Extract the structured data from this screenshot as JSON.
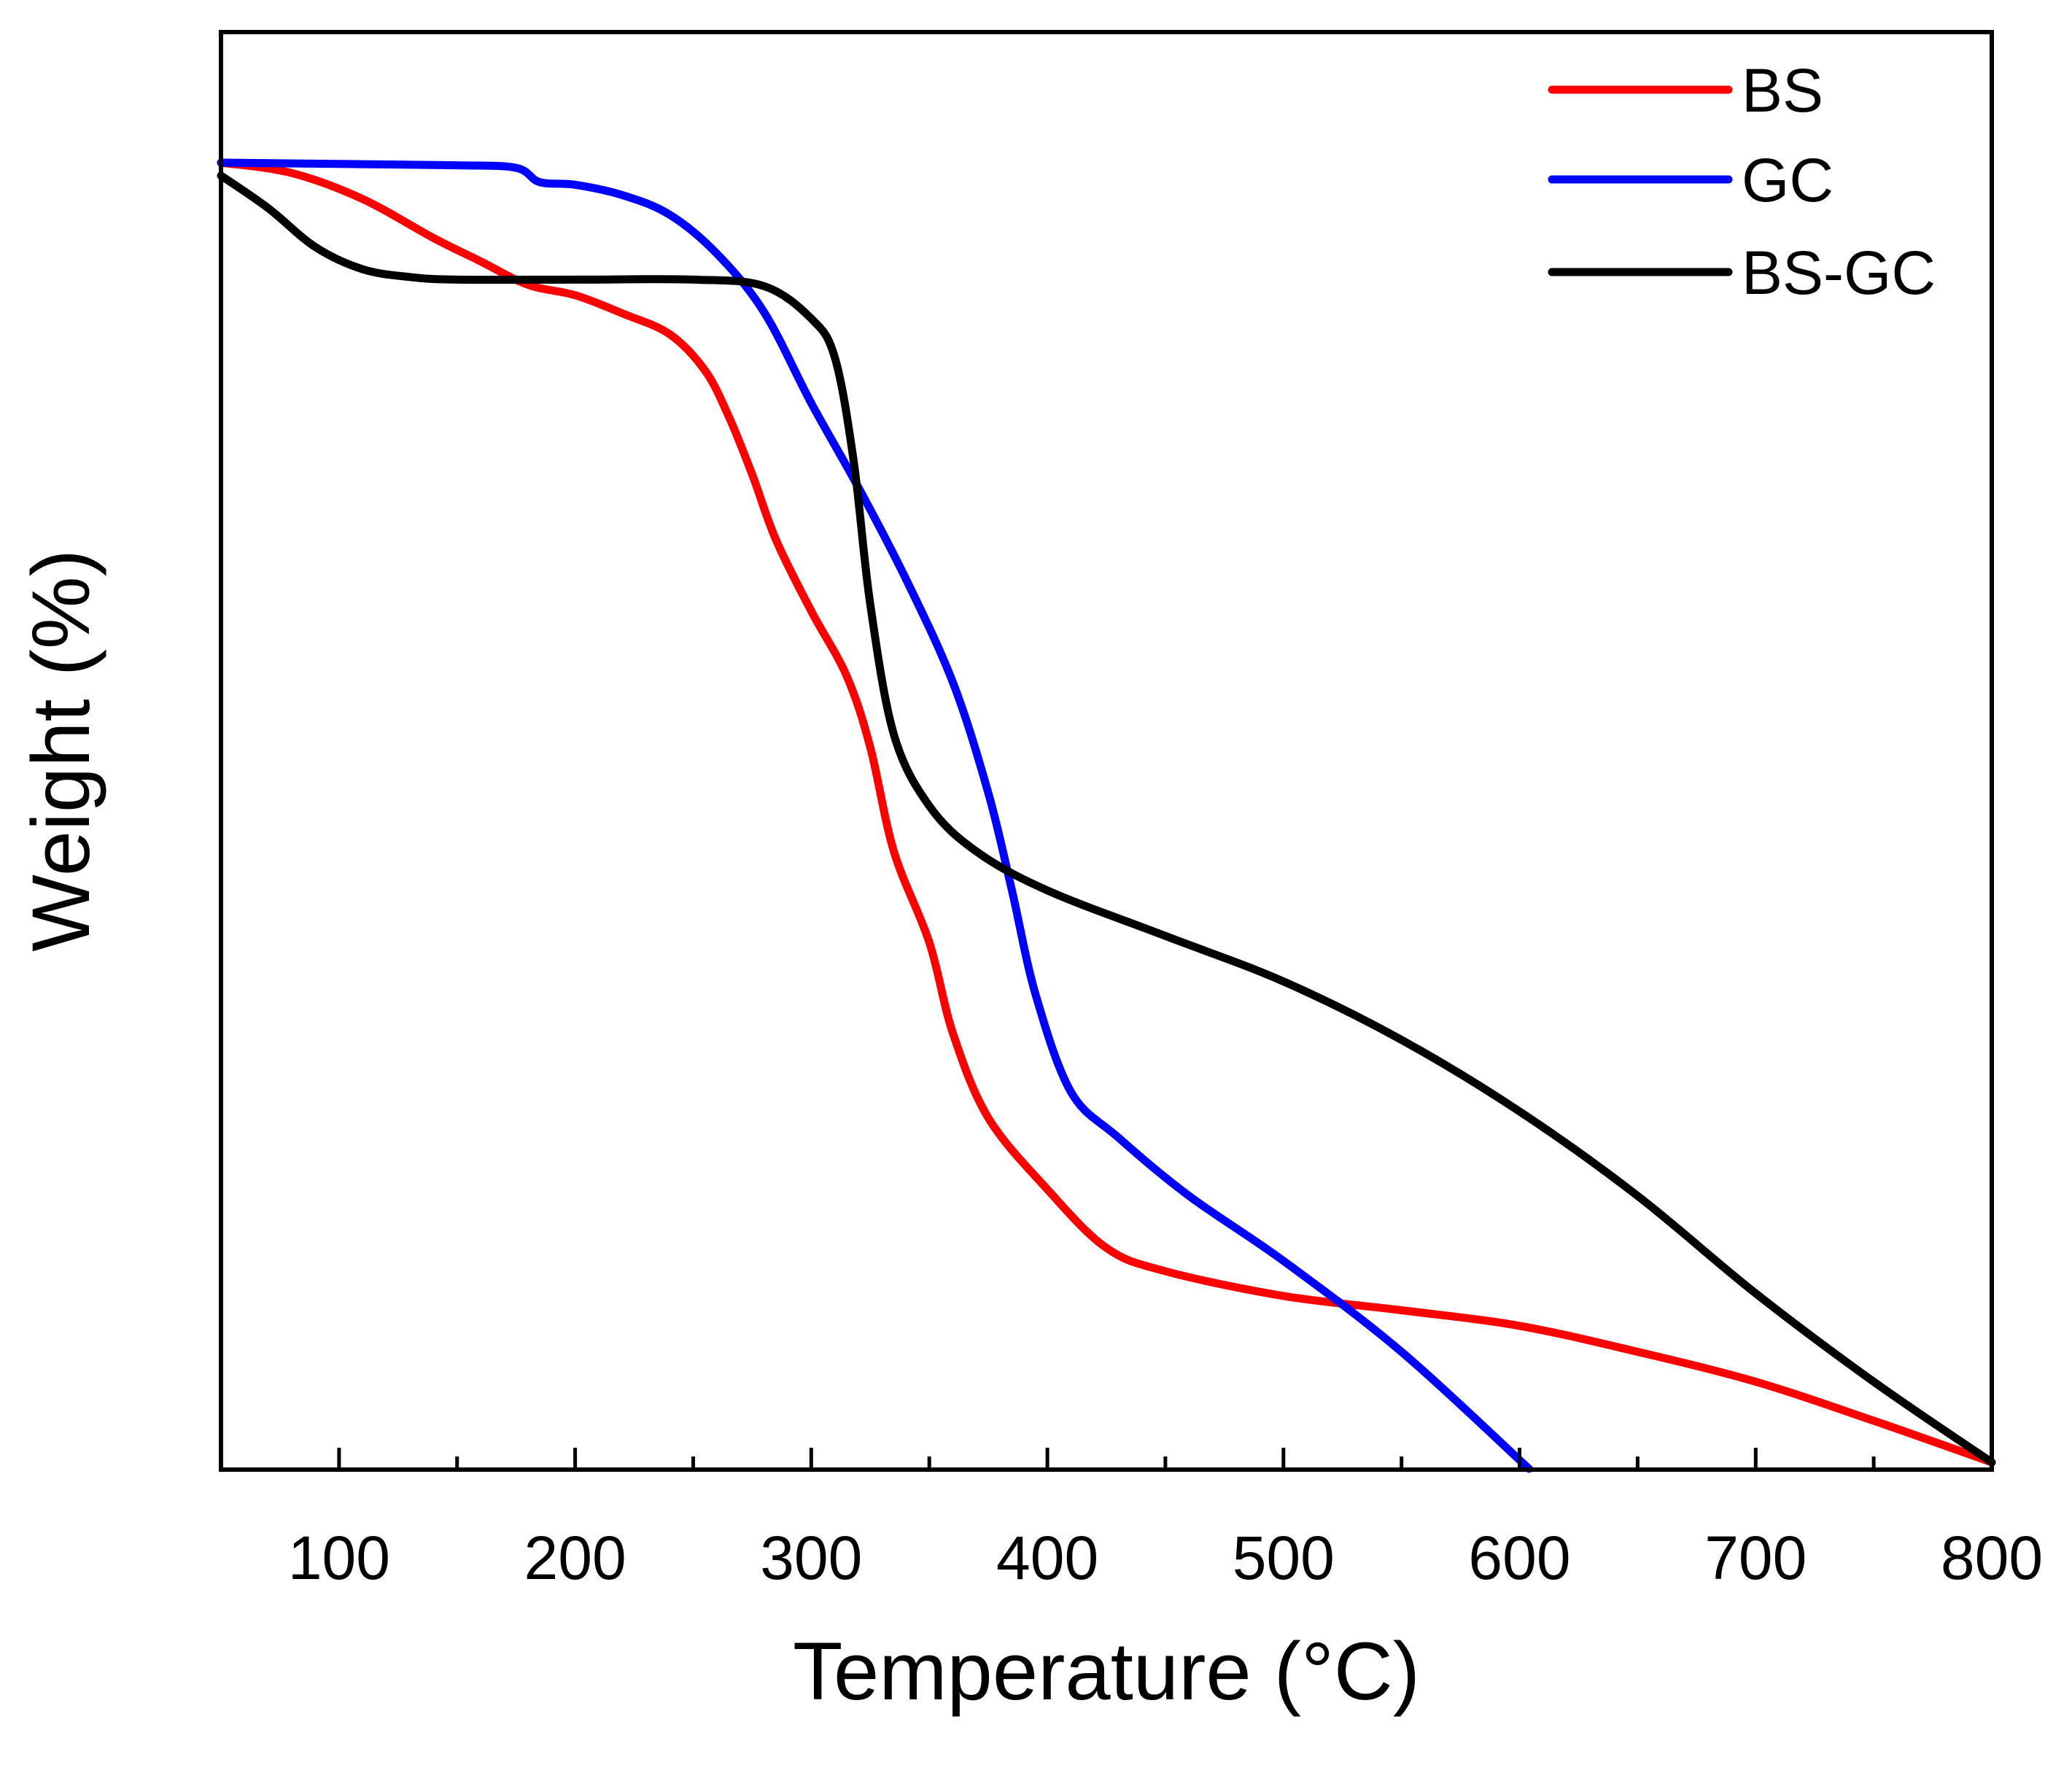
{
  "chart_data": {
    "type": "line",
    "title": "",
    "xlabel": "Temperature (°C)",
    "ylabel": "Weight (%)",
    "xlim": [
      50,
      800
    ],
    "ylim": [
      0,
      100
    ],
    "xticks": [
      100,
      200,
      300,
      400,
      500,
      600,
      700,
      800
    ],
    "yticks_shown": false,
    "grid": false,
    "legend_position": "top-right",
    "series": [
      {
        "name": "BS",
        "color": "#ff0000",
        "points": [
          [
            50,
            100
          ],
          [
            80,
            99.2
          ],
          [
            110,
            97.2
          ],
          [
            140,
            94.2
          ],
          [
            160,
            92.4
          ],
          [
            180,
            90.6
          ],
          [
            200,
            89.8
          ],
          [
            220,
            88.4
          ],
          [
            240,
            86.8
          ],
          [
            255,
            84
          ],
          [
            265,
            80.5
          ],
          [
            275,
            76
          ],
          [
            285,
            71
          ],
          [
            300,
            65.5
          ],
          [
            315,
            60.5
          ],
          [
            325,
            55
          ],
          [
            335,
            47
          ],
          [
            350,
            40
          ],
          [
            360,
            33
          ],
          [
            375,
            26.5
          ],
          [
            400,
            21
          ],
          [
            425,
            16.5
          ],
          [
            450,
            14.7
          ],
          [
            500,
            12.8
          ],
          [
            550,
            11.7
          ],
          [
            600,
            10.5
          ],
          [
            650,
            8.5
          ],
          [
            700,
            6.2
          ],
          [
            750,
            3.2
          ],
          [
            800,
            0
          ]
        ]
      },
      {
        "name": "GC",
        "color": "#0000ff",
        "points": [
          [
            50,
            100
          ],
          [
            100,
            99.9
          ],
          [
            150,
            99.8
          ],
          [
            175,
            99.6
          ],
          [
            185,
            98.5
          ],
          [
            200,
            98.3
          ],
          [
            220,
            97.5
          ],
          [
            240,
            96
          ],
          [
            260,
            93
          ],
          [
            280,
            88.5
          ],
          [
            300,
            81.5
          ],
          [
            320,
            75
          ],
          [
            340,
            68
          ],
          [
            360,
            60
          ],
          [
            375,
            51.5
          ],
          [
            385,
            44
          ],
          [
            395,
            36
          ],
          [
            410,
            28.5
          ],
          [
            430,
            25
          ],
          [
            460,
            20.5
          ],
          [
            500,
            15.5
          ],
          [
            550,
            8.5
          ],
          [
            604,
            -0.5
          ]
        ]
      },
      {
        "name": "BS-GC",
        "color": "#000000",
        "points": [
          [
            50,
            99
          ],
          [
            70,
            96.5
          ],
          [
            90,
            93.5
          ],
          [
            110,
            91.8
          ],
          [
            130,
            91.2
          ],
          [
            150,
            91
          ],
          [
            200,
            91
          ],
          [
            250,
            91
          ],
          [
            280,
            90.5
          ],
          [
            300,
            88
          ],
          [
            310,
            85
          ],
          [
            318,
            77
          ],
          [
            325,
            66
          ],
          [
            335,
            56
          ],
          [
            350,
            50.5
          ],
          [
            370,
            47
          ],
          [
            400,
            44
          ],
          [
            450,
            40.5
          ],
          [
            500,
            37
          ],
          [
            550,
            32.5
          ],
          [
            600,
            27
          ],
          [
            650,
            20.5
          ],
          [
            700,
            13
          ],
          [
            750,
            6.2
          ],
          [
            800,
            0
          ]
        ]
      }
    ]
  }
}
